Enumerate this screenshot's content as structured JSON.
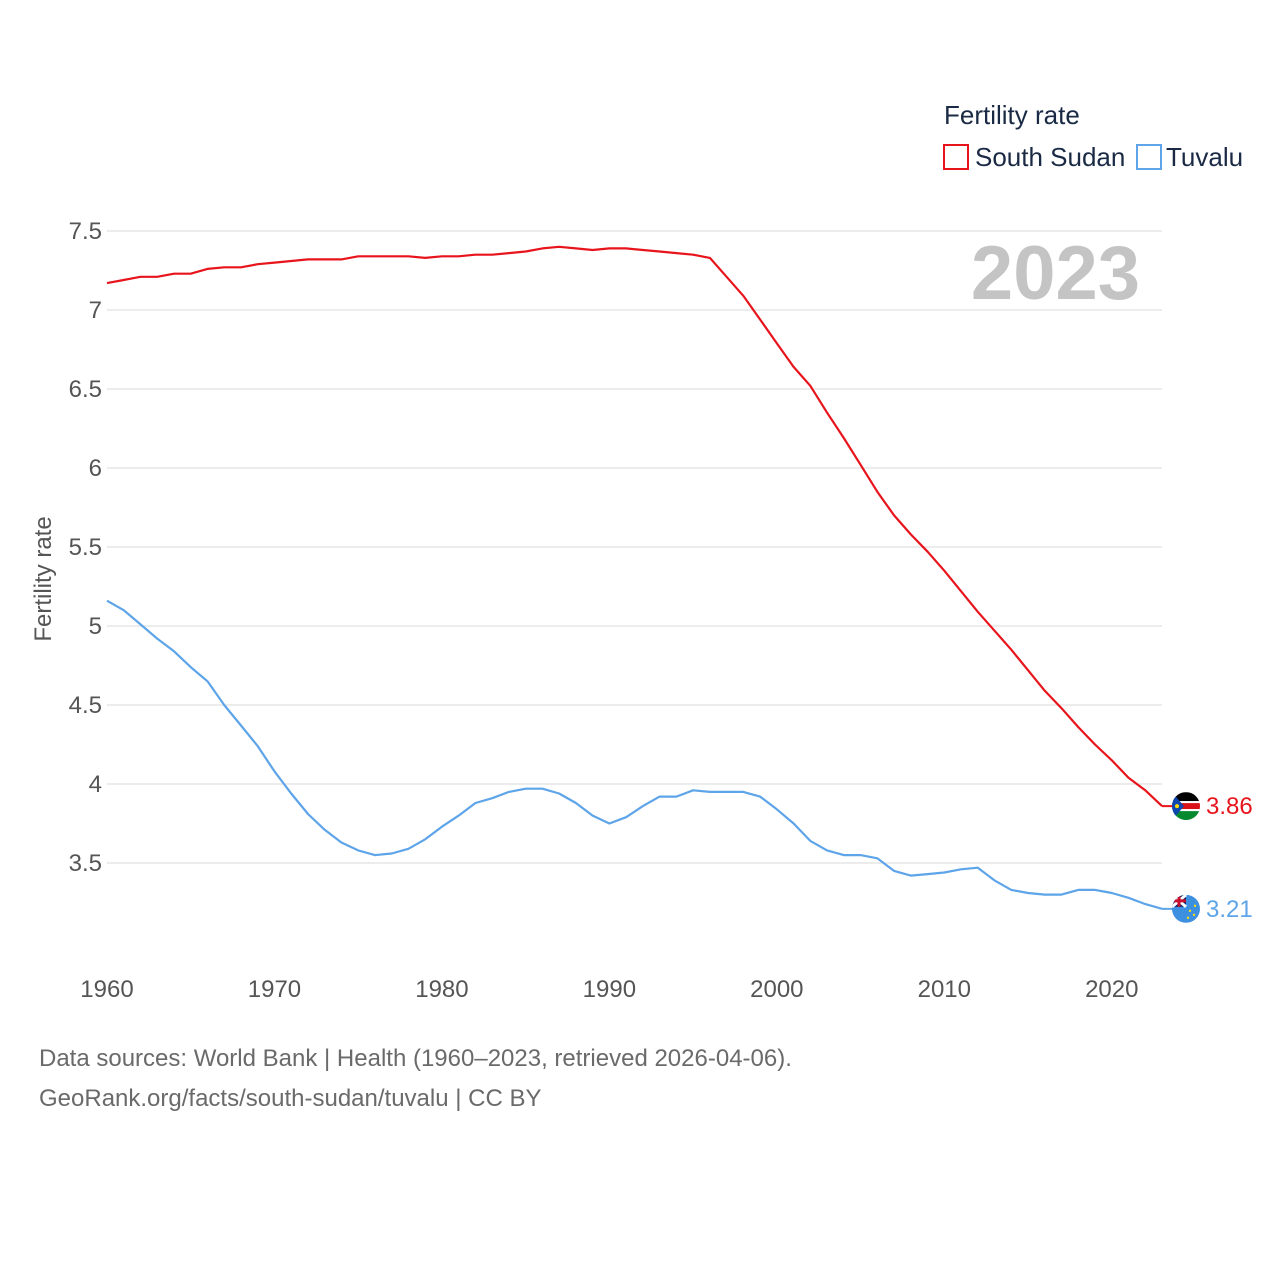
{
  "chart_data": {
    "type": "line",
    "legend": {
      "title": "Fertility rate",
      "placement": "top-right"
    },
    "ylabel": "Fertility rate",
    "xlabel": "",
    "xlim": [
      1960,
      2023
    ],
    "ylim": [
      3.0,
      7.6
    ],
    "yticks": [
      "3.5",
      "4",
      "4.5",
      "5",
      "5.5",
      "6",
      "6.5",
      "7",
      "7.5"
    ],
    "xticks": [
      "1960",
      "1970",
      "1980",
      "1990",
      "2000",
      "2010",
      "2020"
    ],
    "year_label": "2023",
    "series": [
      {
        "name": "South Sudan",
        "color": "#e8141c",
        "end_label": "3.86",
        "end_value": 3.86,
        "x": [
          1960,
          1961,
          1962,
          1963,
          1964,
          1965,
          1966,
          1967,
          1968,
          1969,
          1970,
          1971,
          1972,
          1973,
          1974,
          1975,
          1976,
          1977,
          1978,
          1979,
          1980,
          1981,
          1982,
          1983,
          1984,
          1985,
          1986,
          1987,
          1988,
          1989,
          1990,
          1991,
          1992,
          1993,
          1994,
          1995,
          1996,
          1997,
          1998,
          1999,
          2000,
          2001,
          2002,
          2003,
          2004,
          2005,
          2006,
          2007,
          2008,
          2009,
          2010,
          2011,
          2012,
          2013,
          2014,
          2015,
          2016,
          2017,
          2018,
          2019,
          2020,
          2021,
          2022,
          2023
        ],
        "values": [
          7.17,
          7.19,
          7.21,
          7.21,
          7.23,
          7.23,
          7.26,
          7.27,
          7.27,
          7.29,
          7.3,
          7.31,
          7.32,
          7.32,
          7.32,
          7.34,
          7.34,
          7.34,
          7.34,
          7.33,
          7.34,
          7.34,
          7.35,
          7.35,
          7.36,
          7.37,
          7.39,
          7.4,
          7.39,
          7.38,
          7.39,
          7.39,
          7.38,
          7.37,
          7.36,
          7.35,
          7.33,
          7.21,
          7.09,
          6.94,
          6.79,
          6.64,
          6.52,
          6.35,
          6.19,
          6.02,
          5.85,
          5.7,
          5.58,
          5.47,
          5.35,
          5.22,
          5.09,
          4.97,
          4.85,
          4.72,
          4.59,
          4.48,
          4.36,
          4.25,
          4.15,
          4.04,
          3.96,
          3.86
        ]
      },
      {
        "name": "Tuvalu",
        "color": "#5da4e8",
        "end_label": "3.21",
        "end_value": 3.21,
        "x": [
          1960,
          1961,
          1962,
          1963,
          1964,
          1965,
          1966,
          1967,
          1968,
          1969,
          1970,
          1971,
          1972,
          1973,
          1974,
          1975,
          1976,
          1977,
          1978,
          1979,
          1980,
          1981,
          1982,
          1983,
          1984,
          1985,
          1986,
          1987,
          1988,
          1989,
          1990,
          1991,
          1992,
          1993,
          1994,
          1995,
          1996,
          1997,
          1998,
          1999,
          2000,
          2001,
          2002,
          2003,
          2004,
          2005,
          2006,
          2007,
          2008,
          2009,
          2010,
          2011,
          2012,
          2013,
          2014,
          2015,
          2016,
          2017,
          2018,
          2019,
          2020,
          2021,
          2022,
          2023
        ],
        "values": [
          5.16,
          5.1,
          5.01,
          4.92,
          4.84,
          4.74,
          4.65,
          4.5,
          4.37,
          4.24,
          4.08,
          3.94,
          3.81,
          3.71,
          3.63,
          3.58,
          3.55,
          3.56,
          3.59,
          3.65,
          3.73,
          3.8,
          3.88,
          3.91,
          3.95,
          3.97,
          3.97,
          3.94,
          3.88,
          3.8,
          3.75,
          3.79,
          3.86,
          3.92,
          3.92,
          3.96,
          3.95,
          3.95,
          3.95,
          3.92,
          3.84,
          3.75,
          3.64,
          3.58,
          3.55,
          3.55,
          3.53,
          3.45,
          3.42,
          3.43,
          3.44,
          3.46,
          3.47,
          3.39,
          3.33,
          3.31,
          3.3,
          3.3,
          3.33,
          3.33,
          3.31,
          3.28,
          3.24,
          3.21
        ]
      }
    ]
  },
  "source": {
    "line1": "Data sources: World Bank | Health (1960–2023, retrieved 2026-04-06).",
    "line2": "GeoRank.org/facts/south-sudan/tuvalu | CC BY"
  }
}
